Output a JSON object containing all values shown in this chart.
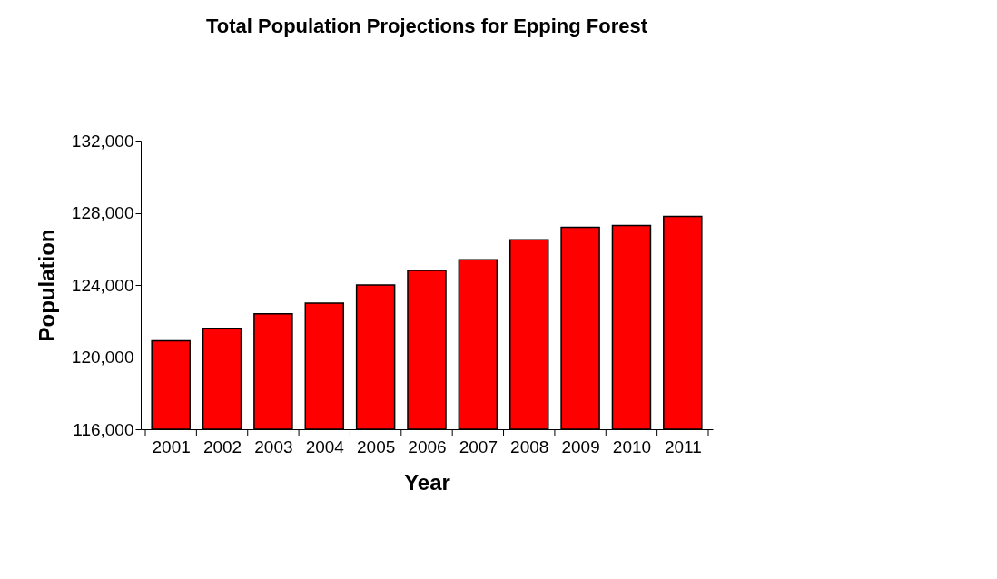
{
  "chart_data": {
    "type": "bar",
    "title": "Total Population Projections for Epping Forest",
    "xlabel": "Year",
    "ylabel": "Population",
    "categories": [
      "2001",
      "2002",
      "2003",
      "2004",
      "2005",
      "2006",
      "2007",
      "2008",
      "2009",
      "2010",
      "2011"
    ],
    "values": [
      120900,
      121600,
      122400,
      123000,
      124000,
      124800,
      125400,
      126500,
      127200,
      127300,
      127800
    ],
    "color": "#ff0000",
    "ylim": [
      116000,
      132000
    ],
    "yticks": [
      {
        "value": 116000,
        "label": "116,000"
      },
      {
        "value": 120000,
        "label": "120,000"
      },
      {
        "value": 124000,
        "label": "124,000"
      },
      {
        "value": 128000,
        "label": "128,000"
      },
      {
        "value": 132000,
        "label": "132,000"
      }
    ],
    "grid": false
  }
}
